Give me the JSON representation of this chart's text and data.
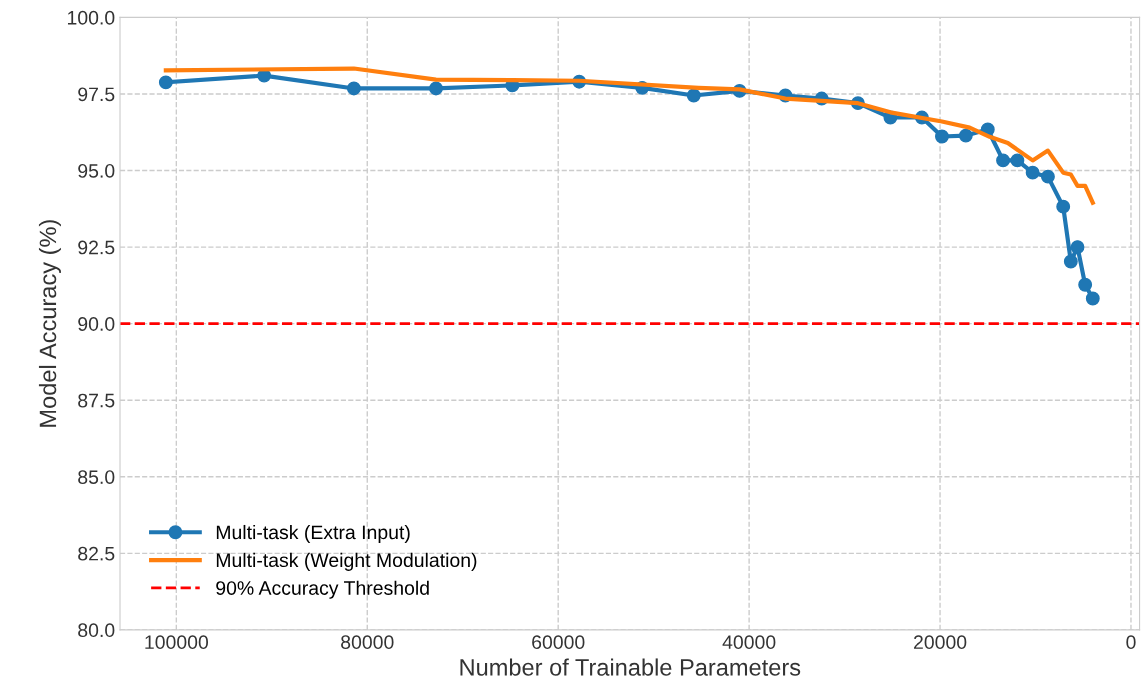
{
  "chart_data": {
    "type": "line",
    "xlabel": "Number of Trainable Parameters",
    "ylabel": "Model Accuracy (%)",
    "series": [
      {
        "name": "Multi-task (Extra Input)",
        "color": "#1f77b4",
        "marker": "circle",
        "x": [
          101100,
          90800,
          81400,
          72800,
          64800,
          57800,
          51200,
          45800,
          41000,
          36200,
          32400,
          28600,
          25200,
          21900,
          19800,
          17300,
          15000,
          13400,
          11900,
          10300,
          8700,
          7100,
          6300,
          5600,
          4800,
          4000
        ],
        "values": [
          97.88,
          98.1,
          97.68,
          97.68,
          97.78,
          97.9,
          97.7,
          97.45,
          97.6,
          97.45,
          97.35,
          97.2,
          96.73,
          96.73,
          96.11,
          96.14,
          96.34,
          95.33,
          95.33,
          94.93,
          94.8,
          93.82,
          92.03,
          92.5,
          91.27,
          90.82
        ]
      },
      {
        "name": "Multi-task (Weight Modulation)",
        "color": "#ff7f0e",
        "marker": "none",
        "x": [
          101100,
          81400,
          72800,
          64800,
          57800,
          45300,
          41000,
          36200,
          28600,
          25200,
          19800,
          16900,
          14800,
          12900,
          10300,
          8700,
          7100,
          6300,
          5600,
          4800,
          4000
        ],
        "values": [
          98.27,
          98.33,
          97.97,
          97.95,
          97.93,
          97.7,
          97.65,
          97.35,
          97.2,
          96.9,
          96.6,
          96.4,
          96.1,
          95.9,
          95.33,
          95.65,
          94.93,
          94.87,
          94.5,
          94.5,
          93.95
        ]
      }
    ],
    "ref_lines": [
      {
        "axis": "y",
        "value": 90,
        "label": "90% Accuracy Threshold",
        "color": "#ff0000",
        "line_style": "dashed"
      }
    ],
    "xlim": [
      105900,
      -900
    ],
    "xticks": [
      100000,
      80000,
      60000,
      40000,
      20000,
      0
    ],
    "ylim": [
      80,
      100
    ],
    "yticks": [
      {
        "value": 80,
        "label": "80.0"
      },
      {
        "value": 82.5,
        "label": "82.5"
      },
      {
        "value": 85,
        "label": "85.0"
      },
      {
        "value": 87.5,
        "label": "87.5"
      },
      {
        "value": 90,
        "label": "90.0"
      },
      {
        "value": 92.5,
        "label": "92.5"
      },
      {
        "value": 95,
        "label": "95.0"
      },
      {
        "value": 97.5,
        "label": "97.5"
      },
      {
        "value": 100,
        "label": "100.0"
      }
    ],
    "grid": true,
    "legend": "bottom left",
    "line_style": "solid"
  }
}
